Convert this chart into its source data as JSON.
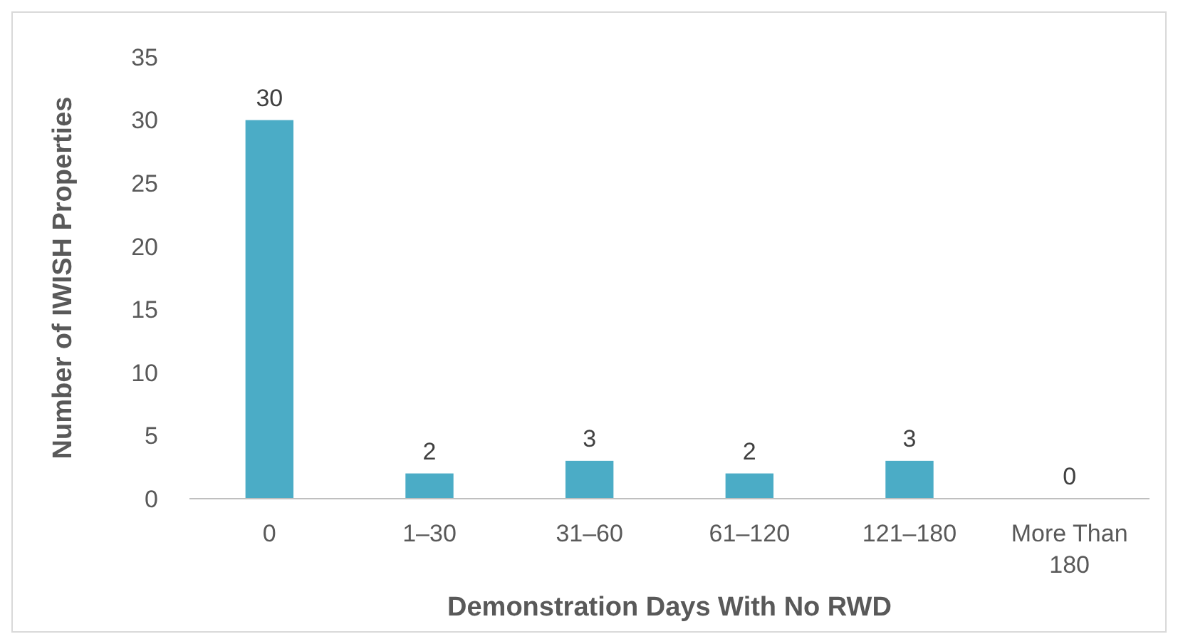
{
  "chart_data": {
    "type": "bar",
    "xlabel": "Demonstration Days With No RWD",
    "ylabel": "Number of IWISH Properties",
    "categories": [
      "0",
      "1–30",
      "31–60",
      "61–120",
      "121–180",
      "More Than 180"
    ],
    "values": [
      30,
      2,
      3,
      2,
      3,
      0
    ],
    "color": "#4bacc6",
    "ylim": [
      0,
      35
    ],
    "yticks": [
      0,
      5,
      10,
      15,
      20,
      25,
      30,
      35
    ],
    "grid": false,
    "data_labels": true
  }
}
